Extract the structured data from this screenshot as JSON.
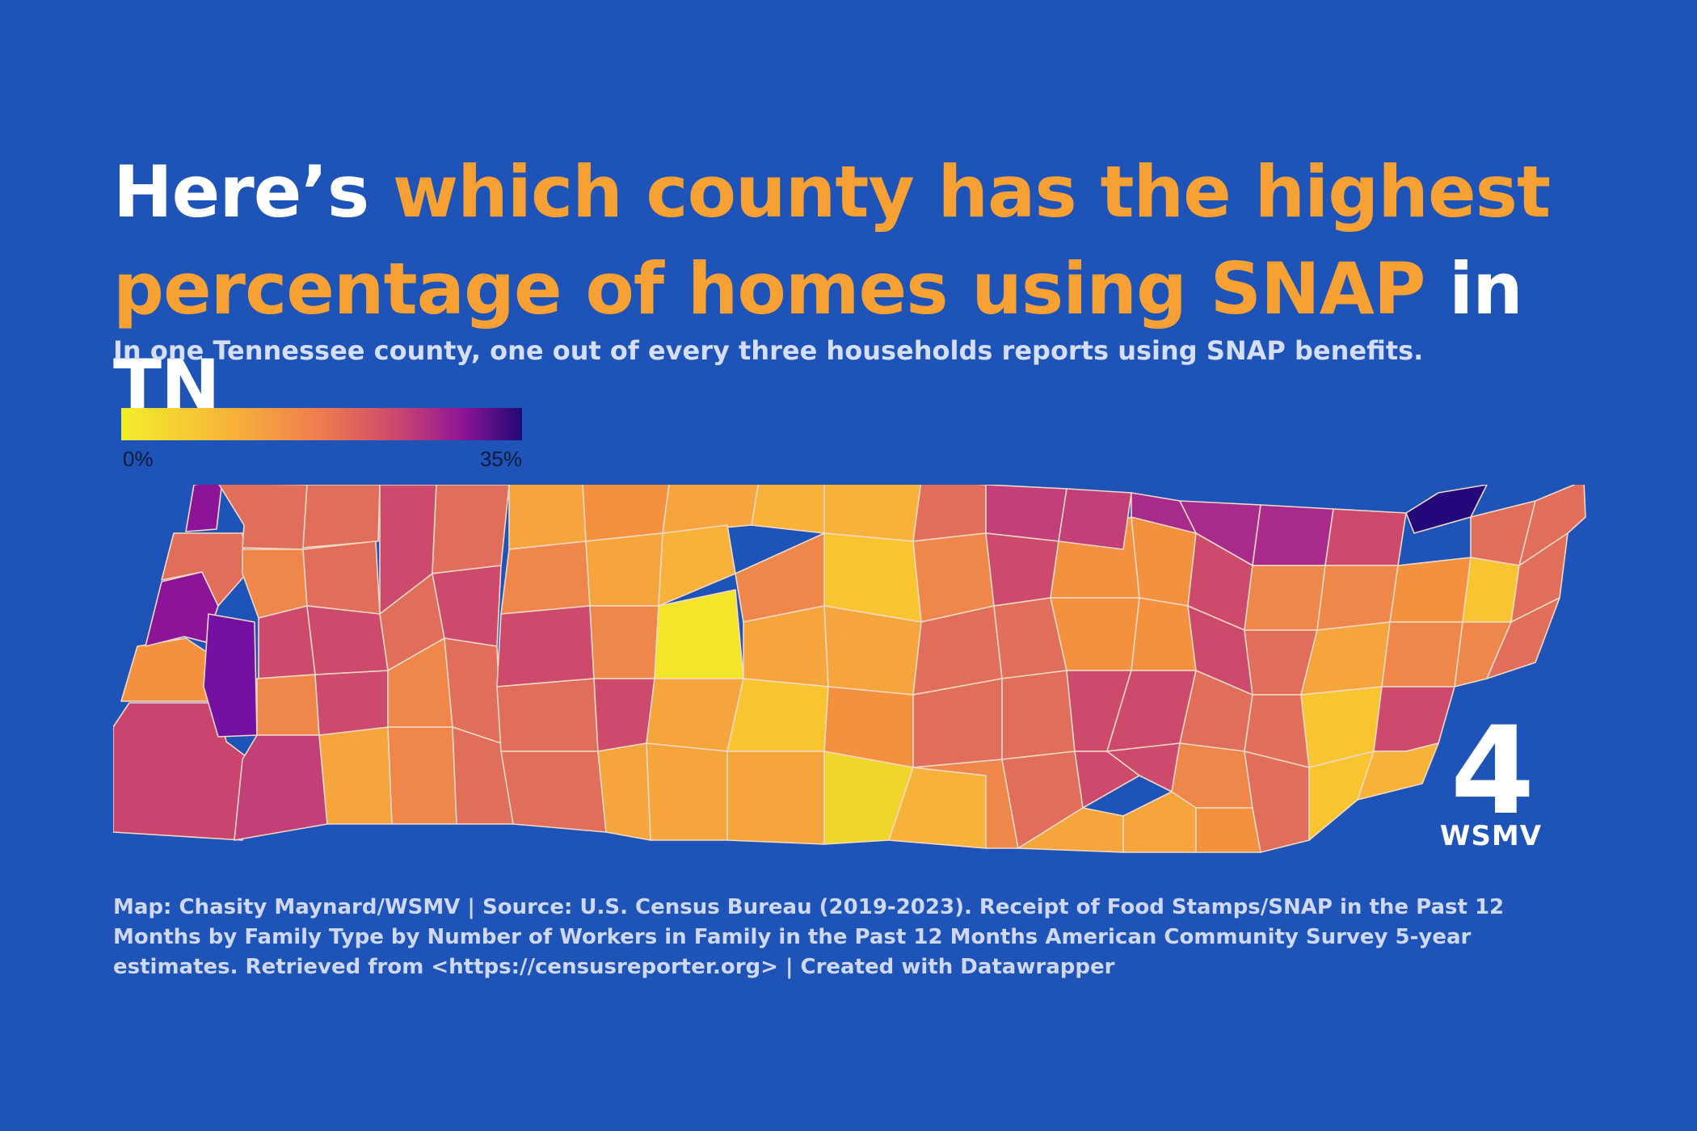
{
  "title": {
    "part1": "Here’s ",
    "highlight": "which county has the highest percentage of homes using SNAP",
    "part2": " in TN"
  },
  "subtitle": "In one Tennessee county, one out of every three households reports using SNAP benefits.",
  "legend": {
    "min_label": "0%",
    "max_label": "35%",
    "scale": [
      {
        "stop": 0,
        "color": "#f2ee2a"
      },
      {
        "stop": 0.28,
        "color": "#f8b23a"
      },
      {
        "stop": 0.5,
        "color": "#ee7b50"
      },
      {
        "stop": 0.68,
        "color": "#cd4a6c"
      },
      {
        "stop": 0.85,
        "color": "#8e1596"
      },
      {
        "stop": 1,
        "color": "#220874"
      }
    ]
  },
  "map": {
    "state": "Tennessee",
    "unit": "county",
    "value_range_percent": [
      0,
      35
    ]
  },
  "logo": {
    "number": "4",
    "name": "WSMV"
  },
  "footer": "Map: Chasity Maynard/WSMV | Source: U.S. Census Bureau (2019-2023). Receipt of Food Stamps/SNAP in the Past 12 Months by Family Type by Number of Workers in Family in the Past 12 Months American Community Survey 5-year estimates. Retrieved from <https://censusreporter.org> | Created with Datawrapper",
  "colors": {
    "background": "#1e53b8",
    "title_white": "#ffffff",
    "title_highlight": "#f7a033",
    "county_border": "#f3d9c6"
  }
}
